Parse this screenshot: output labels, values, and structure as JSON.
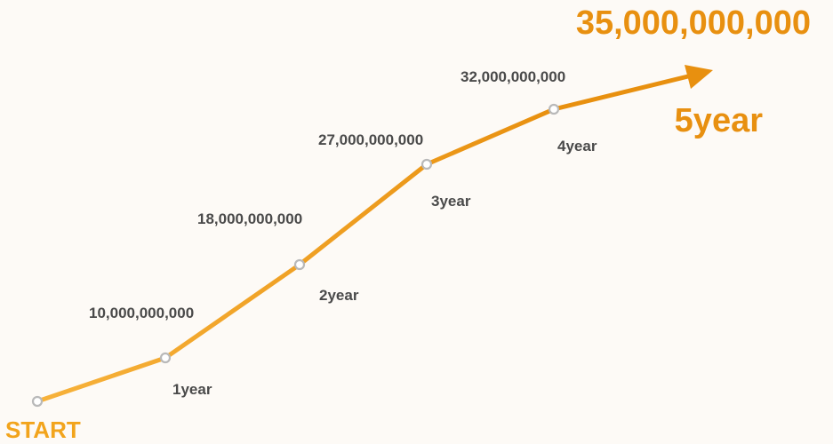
{
  "chart_data": {
    "type": "line",
    "x": [
      "START",
      "1year",
      "2year",
      "3year",
      "4year",
      "5year"
    ],
    "values": [
      0,
      10000000000,
      18000000000,
      27000000000,
      32000000000,
      35000000000
    ],
    "value_labels": [
      "",
      "10,000,000,000",
      "18,000,000,000",
      "27,000,000,000",
      "32,000,000,000",
      "35,000,000,000"
    ],
    "start_label": "START",
    "final_year_label": "5year",
    "final_value_label": "35,000,000,000",
    "grid": false,
    "colors": {
      "line_start": "#f7b23b",
      "line_end": "#e8900f",
      "marker_fill": "#ffffff",
      "marker_stroke": "#b9b9b9",
      "label_text": "#4a4a4a",
      "accent": "#e89010",
      "start_text": "#f2a41c",
      "background": "#fdfaf6"
    }
  }
}
